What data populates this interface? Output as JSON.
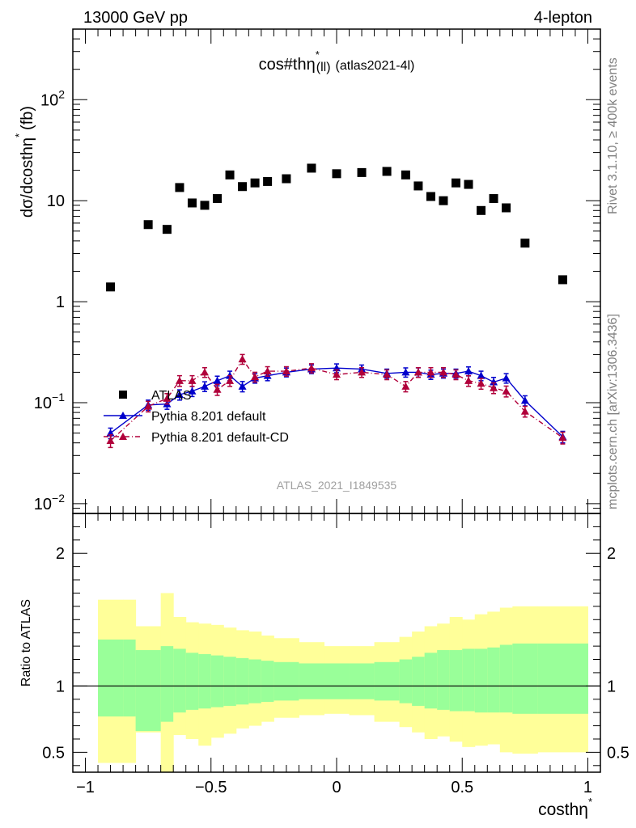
{
  "header": {
    "left": "13000 GeV pp",
    "right": "4-lepton"
  },
  "side_labels": {
    "rivet": "Rivet 3.1.10, ≥ 400k events",
    "mcplots": "mcplots.cern.ch [arXiv:1306.3436]"
  },
  "colors": {
    "data": "#000000",
    "pythia_default": "#0000cc",
    "pythia_default_cd": "#b0003a",
    "band_inner": "#99ff99",
    "band_outer": "#ffff99"
  },
  "chart_data": [
    {
      "type": "scatter",
      "panel": "main",
      "title_main": "cos#thη",
      "title_sup": "*",
      "title_sub": "(ll)",
      "title_suffix": "(atlas2021-4l)",
      "ylabel": "dσ/dcosthη",
      "ylabel_sup": "*",
      "ylabel_unit": "(fb)",
      "yscale": "log",
      "ylim": [
        0.008,
        500
      ],
      "xlim": [
        -1.05,
        1.05
      ],
      "yticks": [
        {
          "value": 0.01,
          "base": "10",
          "exp": "−2"
        },
        {
          "value": 0.1,
          "base": "10",
          "exp": "−1"
        },
        {
          "value": 1,
          "base": "1",
          "exp": ""
        },
        {
          "value": 10,
          "base": "10",
          "exp": ""
        },
        {
          "value": 100,
          "base": "10",
          "exp": "2"
        }
      ],
      "watermark": "ATLAS_2021_I1849535",
      "legend_placement": "bottom-left",
      "series": [
        {
          "name": "ATLAS",
          "marker": "square",
          "x": [
            -0.9,
            -0.75,
            -0.675,
            -0.625,
            -0.575,
            -0.525,
            -0.475,
            -0.425,
            -0.375,
            -0.325,
            -0.275,
            -0.2,
            -0.1,
            0.0,
            0.1,
            0.2,
            0.275,
            0.325,
            0.375,
            0.425,
            0.475,
            0.525,
            0.575,
            0.625,
            0.675,
            0.75,
            0.9
          ],
          "y": [
            1.4,
            5.8,
            5.2,
            13.5,
            9.5,
            9.0,
            10.5,
            18.0,
            13.8,
            15.0,
            15.5,
            16.5,
            21.0,
            18.5,
            19.0,
            19.5,
            18.0,
            14.0,
            11.0,
            10.0,
            15.0,
            14.5,
            8.0,
            10.5,
            8.5,
            3.8,
            1.65
          ]
        },
        {
          "name": "Pythia 8.201 default",
          "marker": "triangle",
          "x": [
            -0.9,
            -0.75,
            -0.675,
            -0.625,
            -0.575,
            -0.525,
            -0.475,
            -0.425,
            -0.375,
            -0.325,
            -0.275,
            -0.2,
            -0.1,
            0.0,
            0.1,
            0.2,
            0.275,
            0.325,
            0.375,
            0.425,
            0.475,
            0.525,
            0.575,
            0.625,
            0.675,
            0.75,
            0.9
          ],
          "y": [
            0.05,
            0.095,
            0.097,
            0.12,
            0.13,
            0.145,
            0.165,
            0.185,
            0.145,
            0.175,
            0.185,
            0.2,
            0.215,
            0.22,
            0.215,
            0.195,
            0.2,
            0.2,
            0.19,
            0.195,
            0.195,
            0.205,
            0.185,
            0.16,
            0.175,
            0.105,
            0.046
          ],
          "err": [
            0.006,
            0.011,
            0.011,
            0.014,
            0.015,
            0.016,
            0.018,
            0.02,
            0.017,
            0.019,
            0.02,
            0.02,
            0.021,
            0.022,
            0.021,
            0.02,
            0.021,
            0.021,
            0.02,
            0.02,
            0.02,
            0.021,
            0.02,
            0.018,
            0.019,
            0.012,
            0.006
          ]
        },
        {
          "name": "Pythia 8.201 default-CD",
          "marker": "triangle",
          "x": [
            -0.9,
            -0.75,
            -0.675,
            -0.625,
            -0.575,
            -0.525,
            -0.475,
            -0.425,
            -0.375,
            -0.325,
            -0.275,
            -0.2,
            -0.1,
            0.0,
            0.1,
            0.2,
            0.275,
            0.325,
            0.375,
            0.425,
            0.475,
            0.525,
            0.575,
            0.625,
            0.675,
            0.75,
            0.9
          ],
          "y": [
            0.042,
            0.092,
            0.11,
            0.165,
            0.165,
            0.2,
            0.135,
            0.165,
            0.27,
            0.18,
            0.205,
            0.205,
            0.22,
            0.19,
            0.2,
            0.19,
            0.145,
            0.2,
            0.2,
            0.2,
            0.19,
            0.165,
            0.155,
            0.14,
            0.13,
            0.082,
            0.045
          ],
          "err": [
            0.006,
            0.011,
            0.013,
            0.02,
            0.02,
            0.022,
            0.017,
            0.02,
            0.03,
            0.02,
            0.022,
            0.022,
            0.023,
            0.021,
            0.022,
            0.021,
            0.017,
            0.022,
            0.022,
            0.022,
            0.021,
            0.02,
            0.019,
            0.017,
            0.016,
            0.01,
            0.006
          ]
        }
      ]
    },
    {
      "type": "area",
      "panel": "ratio",
      "ylabel": "Ratio to ATLAS",
      "xlabel": "costhη",
      "xlabel_sup": "*",
      "ylim": [
        0.35,
        2.3
      ],
      "xlim": [
        -1.05,
        1.05
      ],
      "yticks": [
        0.5,
        1,
        2
      ],
      "xticks": [
        {
          "value": -1,
          "label": "−1"
        },
        {
          "value": -0.5,
          "label": "−0.5"
        },
        {
          "value": 0,
          "label": "0"
        },
        {
          "value": 0.5,
          "label": "0.5"
        },
        {
          "value": 1,
          "label": "1"
        }
      ],
      "reference_line": 1,
      "bin_edges": [
        -0.95,
        -0.85,
        -0.8,
        -0.7,
        -0.65,
        -0.6,
        -0.55,
        -0.5,
        -0.45,
        -0.4,
        -0.35,
        -0.3,
        -0.25,
        -0.15,
        -0.05,
        0.05,
        0.15,
        0.25,
        0.3,
        0.35,
        0.4,
        0.45,
        0.5,
        0.55,
        0.6,
        0.65,
        0.7,
        0.8,
        1.0
      ],
      "bands": [
        {
          "name": "inner",
          "low": [
            0.77,
            0.77,
            0.66,
            0.73,
            0.8,
            0.82,
            0.83,
            0.84,
            0.85,
            0.86,
            0.87,
            0.88,
            0.89,
            0.9,
            0.9,
            0.9,
            0.89,
            0.87,
            0.85,
            0.83,
            0.82,
            0.81,
            0.81,
            0.8,
            0.8,
            0.8,
            0.79,
            0.79
          ],
          "high": [
            1.35,
            1.35,
            1.27,
            1.3,
            1.28,
            1.25,
            1.24,
            1.23,
            1.22,
            1.21,
            1.2,
            1.19,
            1.18,
            1.17,
            1.17,
            1.17,
            1.18,
            1.2,
            1.22,
            1.25,
            1.27,
            1.27,
            1.28,
            1.28,
            1.29,
            1.31,
            1.32,
            1.32
          ]
        },
        {
          "name": "outer",
          "low": [
            0.42,
            0.42,
            0.65,
            0.35,
            0.63,
            0.6,
            0.55,
            0.61,
            0.64,
            0.68,
            0.7,
            0.73,
            0.76,
            0.78,
            0.79,
            0.78,
            0.73,
            0.69,
            0.65,
            0.6,
            0.62,
            0.58,
            0.54,
            0.55,
            0.56,
            0.5,
            0.49,
            0.5
          ],
          "high": [
            1.65,
            1.65,
            1.45,
            1.7,
            1.52,
            1.48,
            1.47,
            1.46,
            1.44,
            1.42,
            1.41,
            1.38,
            1.36,
            1.33,
            1.3,
            1.3,
            1.33,
            1.37,
            1.41,
            1.45,
            1.47,
            1.52,
            1.5,
            1.54,
            1.56,
            1.59,
            1.6,
            1.6
          ]
        }
      ]
    }
  ]
}
